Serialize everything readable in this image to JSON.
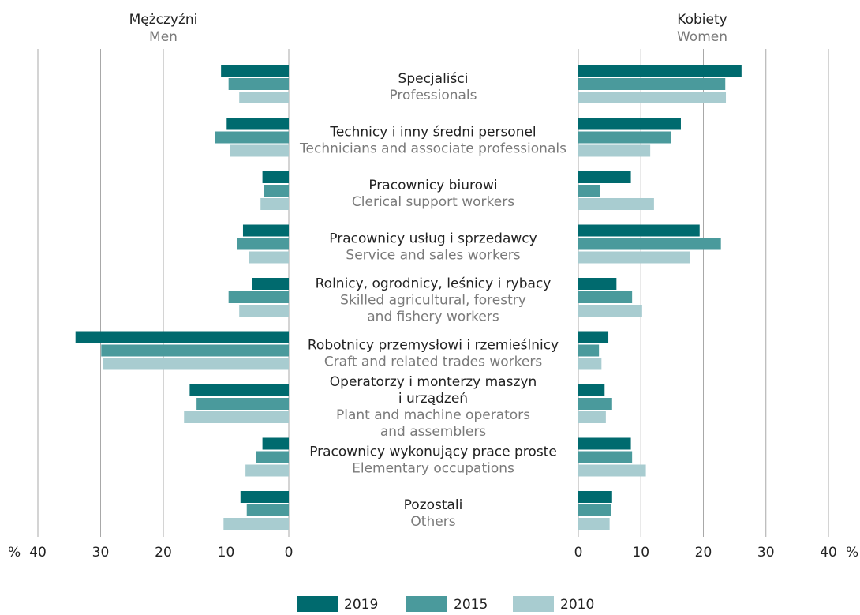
{
  "chart_data": {
    "type": "butterfly",
    "unit": "%",
    "xlim": [
      0,
      40
    ],
    "xticks": [
      0,
      10,
      20,
      30,
      40
    ],
    "grid": true,
    "categories": [
      {
        "pl": [
          "Specjaliści"
        ],
        "en": [
          "Professionals"
        ]
      },
      {
        "pl": [
          "Technicy i inny średni personel"
        ],
        "en": [
          "Technicians and associate professionals"
        ]
      },
      {
        "pl": [
          "Pracownicy biurowi"
        ],
        "en": [
          "Clerical support workers"
        ]
      },
      {
        "pl": [
          "Pracownicy usług i sprzedawcy"
        ],
        "en": [
          "Service and sales workers"
        ]
      },
      {
        "pl": [
          "Rolnicy, ogrodnicy, leśnicy i rybacy"
        ],
        "en": [
          "Skilled agricultural, forestry",
          "and fishery workers"
        ]
      },
      {
        "pl": [
          "Robotnicy przemysłowi i rzemieślnicy"
        ],
        "en": [
          "Craft and related trades workers"
        ]
      },
      {
        "pl": [
          "Operatorzy i monterzy maszyn",
          "i urządzeń"
        ],
        "en": [
          "Plant and machine operators",
          "and assemblers"
        ]
      },
      {
        "pl": [
          "Pracownicy wykonujący prace proste"
        ],
        "en": [
          "Elementary occupations"
        ]
      },
      {
        "pl": [
          "Pozostali"
        ],
        "en": [
          "Others"
        ]
      }
    ],
    "legend": [
      "2019",
      "2015",
      "2010"
    ],
    "colors": [
      "#006a6e",
      "#4a9a9c",
      "#a8ccd0"
    ],
    "panels": [
      {
        "title": "Mężczyźni",
        "subtitle": "Men",
        "side": "left",
        "series": [
          {
            "name": "2019",
            "values": [
              10.8,
              9.9,
              4.2,
              7.3,
              5.9,
              34.0,
              15.8,
              4.2,
              7.7
            ]
          },
          {
            "name": "2015",
            "values": [
              9.6,
              11.8,
              3.9,
              8.3,
              9.6,
              29.9,
              14.7,
              5.2,
              6.7
            ]
          },
          {
            "name": "2010",
            "values": [
              7.9,
              9.4,
              4.5,
              6.4,
              7.9,
              29.6,
              16.7,
              6.9,
              10.4
            ]
          }
        ]
      },
      {
        "title": "Kobiety",
        "subtitle": "Women",
        "side": "right",
        "series": [
          {
            "name": "2019",
            "values": [
              26.1,
              16.4,
              8.4,
              19.4,
              6.1,
              4.8,
              4.2,
              8.4,
              5.4
            ]
          },
          {
            "name": "2015",
            "values": [
              23.5,
              14.8,
              3.5,
              22.8,
              8.6,
              3.3,
              5.4,
              8.6,
              5.3
            ]
          },
          {
            "name": "2010",
            "values": [
              23.6,
              11.5,
              12.1,
              17.8,
              10.2,
              3.7,
              4.4,
              10.8,
              5.0
            ]
          }
        ]
      }
    ]
  }
}
